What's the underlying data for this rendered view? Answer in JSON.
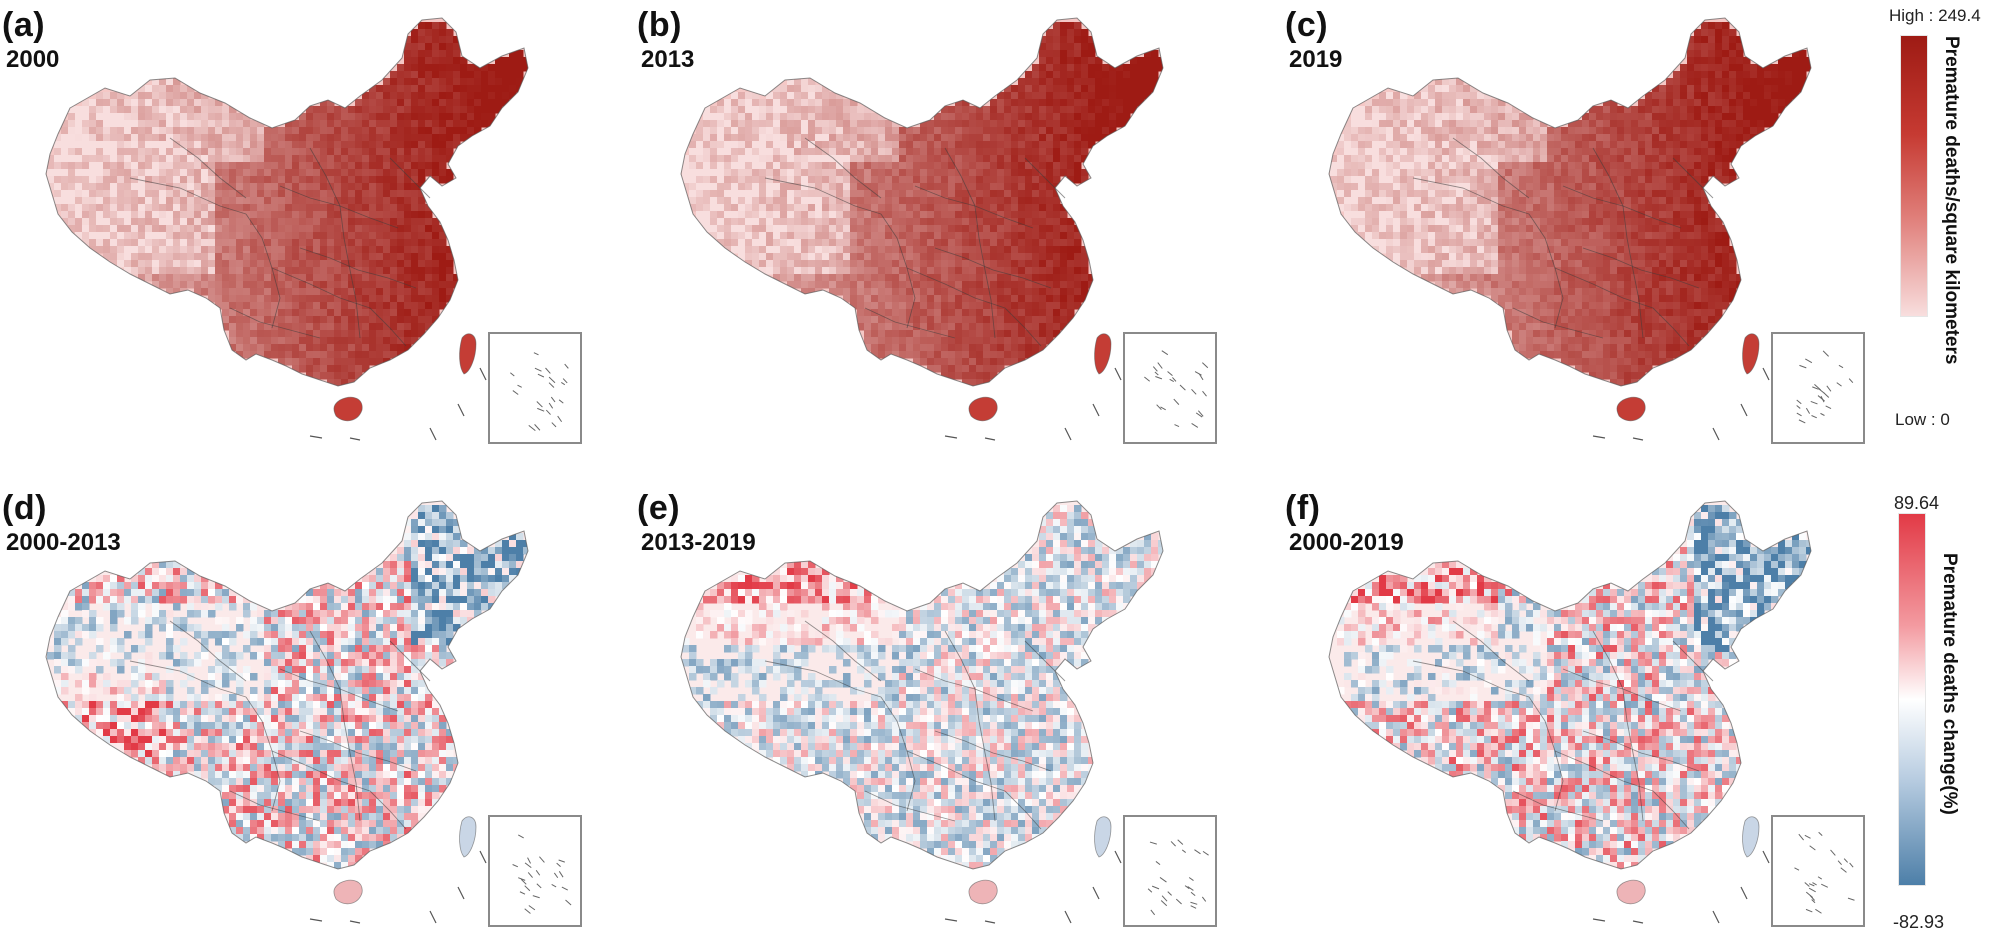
{
  "panels": [
    {
      "letter": "(a)",
      "label": "2000",
      "type": "density"
    },
    {
      "letter": "(b)",
      "label": "2013",
      "type": "density"
    },
    {
      "letter": "(c)",
      "label": "2019",
      "type": "density"
    },
    {
      "letter": "(d)",
      "label": "2000-2013",
      "type": "change"
    },
    {
      "letter": "(e)",
      "label": "2013-2019",
      "type": "change"
    },
    {
      "letter": "(f)",
      "label": "2000-2019",
      "type": "change"
    }
  ],
  "legend_top": {
    "high_label": "High : 249.4",
    "low_label": "Low : 0",
    "title": "Premature deaths/square kilometers",
    "color_high": "#9e1b14",
    "color_low": "#f8dede"
  },
  "legend_bottom": {
    "max_label": "89.64",
    "min_label": "-82.93",
    "title": "Premature deaths change(%)",
    "color_high": "#e23a46",
    "color_mid": "#ffffff",
    "color_low": "#4d7fa8"
  }
}
